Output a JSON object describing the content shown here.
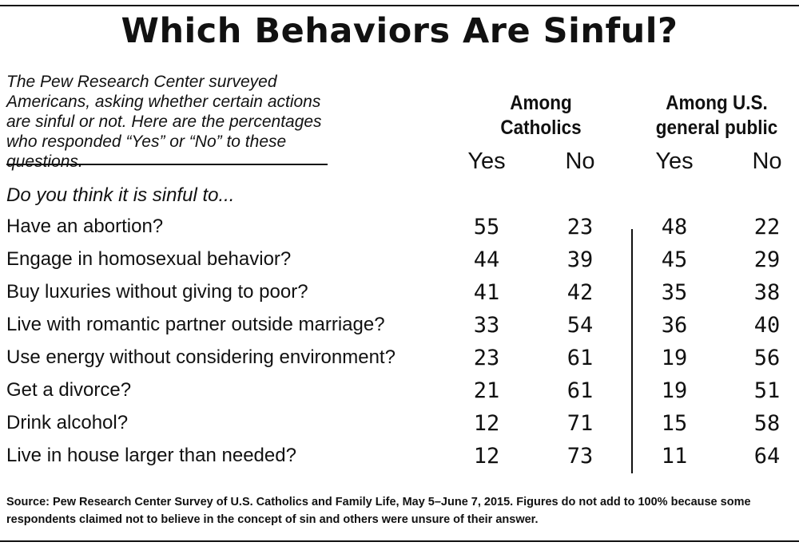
{
  "chart_data": {
    "type": "table",
    "title": "Which Behaviors Are Sinful?",
    "intro": "The Pew Research Center surveyed Americans, asking whether certain actions are sinful or not. Here are the percentages who responded “Yes” or “No” to these questions.",
    "question": "Do you think it is sinful to...",
    "groups": [
      {
        "name": "Among Catholics",
        "columns": [
          "Yes",
          "No"
        ]
      },
      {
        "name": "Among U.S. general public",
        "columns": [
          "Yes",
          "No"
        ]
      }
    ],
    "rows": [
      {
        "label": "Have an abortion?",
        "values": [
          "55",
          "23",
          "48",
          "22"
        ]
      },
      {
        "label": "Engage in homosexual behavior?",
        "values": [
          "44",
          "39",
          "45",
          "29"
        ]
      },
      {
        "label": "Buy luxuries without giving to poor?",
        "values": [
          "41",
          "42",
          "35",
          "38"
        ]
      },
      {
        "label": "Live with romantic partner outside marriage?",
        "values": [
          "33",
          "54",
          "36",
          "40"
        ]
      },
      {
        "label": "Use energy without considering environment?",
        "values": [
          "23",
          "61",
          "19",
          "56"
        ]
      },
      {
        "label": "Get a divorce?",
        "values": [
          "21",
          "61",
          "19",
          "51"
        ]
      },
      {
        "label": "Drink alcohol?",
        "values": [
          "12",
          "71",
          "15",
          "58"
        ]
      },
      {
        "label": "Live in house larger than needed?",
        "values": [
          "12",
          "73",
          "11",
          "64"
        ]
      }
    ],
    "source": "Source: Pew Research Center Survey of U.S. Catholics and Family Life, May 5–June 7, 2015. Figures do not add to 100% because some respondents claimed not to believe in the concept of sin and others were unsure of their answer."
  }
}
